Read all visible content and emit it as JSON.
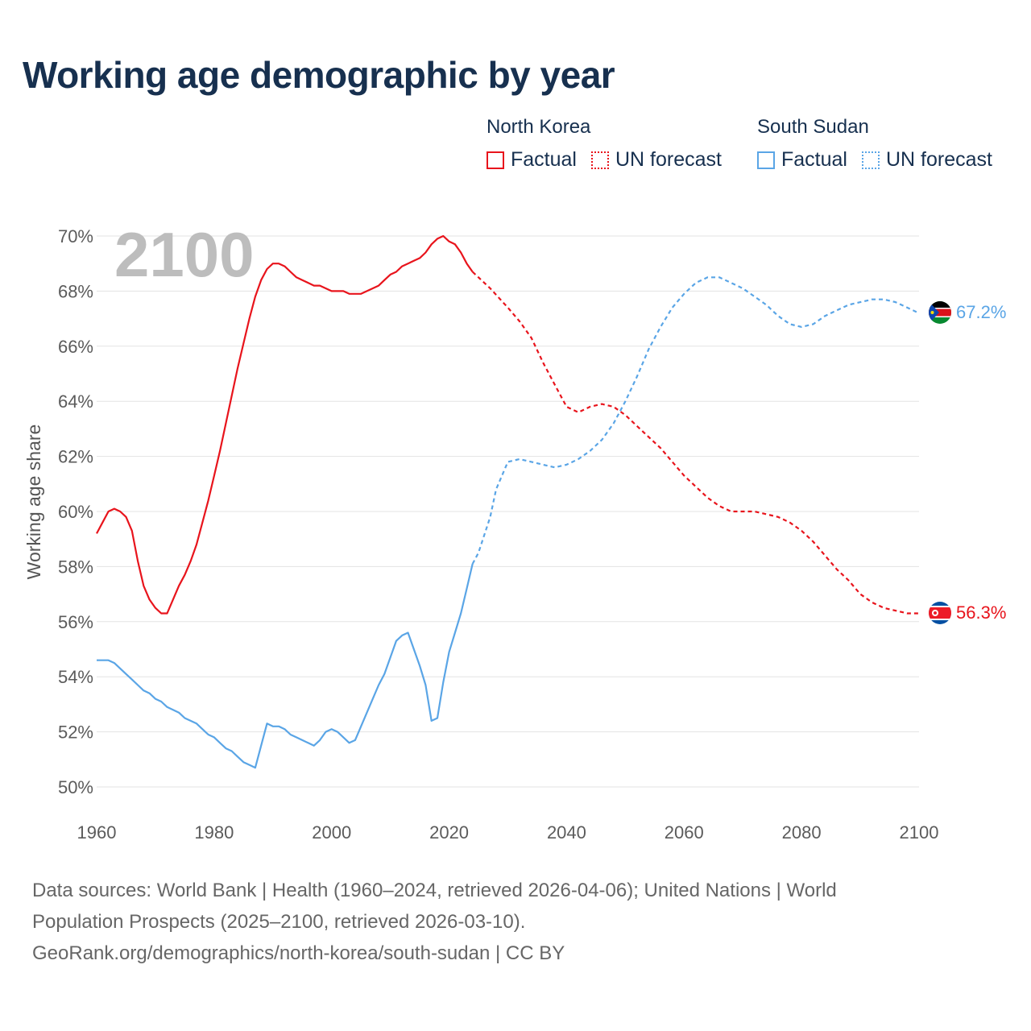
{
  "title": "Working age demographic by year",
  "legend": {
    "groups": [
      {
        "country": "North Korea",
        "factual": "Factual",
        "forecast": "UN forecast",
        "color": "#e8141c"
      },
      {
        "country": "South Sudan",
        "factual": "Factual",
        "forecast": "UN forecast",
        "color": "#5aa5e6"
      }
    ]
  },
  "sources": {
    "line1": "Data sources: World Bank | Health (1960–2024, retrieved 2026-04-06); United Nations | World",
    "line2": "Population Prospects (2025–2100, retrieved 2026-03-10).",
    "line3": "GeoRank.org/demographics/north-korea/south-sudan | CC BY"
  },
  "chart_data": {
    "type": "line",
    "title": "Working age demographic by year",
    "xlabel": "",
    "ylabel": "Working age share",
    "xlim": [
      1960,
      2100
    ],
    "ylim": [
      49,
      70.5
    ],
    "x_ticks": [
      1960,
      1980,
      2000,
      2020,
      2040,
      2060,
      2080,
      2100
    ],
    "y_ticks": [
      50,
      52,
      54,
      56,
      58,
      60,
      62,
      64,
      66,
      68,
      70
    ],
    "y_tick_suffix": "%",
    "grid": true,
    "year_overlay": "2100",
    "forecast_start": 2024,
    "series": [
      {
        "name": "North Korea",
        "color": "#e8141c",
        "end_label": "56.3%",
        "points": [
          [
            1960,
            59.2
          ],
          [
            1961,
            59.6
          ],
          [
            1962,
            60.0
          ],
          [
            1963,
            60.1
          ],
          [
            1964,
            60.0
          ],
          [
            1965,
            59.8
          ],
          [
            1966,
            59.3
          ],
          [
            1967,
            58.2
          ],
          [
            1968,
            57.3
          ],
          [
            1969,
            56.8
          ],
          [
            1970,
            56.5
          ],
          [
            1971,
            56.3
          ],
          [
            1972,
            56.3
          ],
          [
            1973,
            56.8
          ],
          [
            1974,
            57.3
          ],
          [
            1975,
            57.7
          ],
          [
            1976,
            58.2
          ],
          [
            1977,
            58.8
          ],
          [
            1978,
            59.6
          ],
          [
            1979,
            60.4
          ],
          [
            1980,
            61.3
          ],
          [
            1981,
            62.2
          ],
          [
            1982,
            63.2
          ],
          [
            1983,
            64.2
          ],
          [
            1984,
            65.2
          ],
          [
            1985,
            66.1
          ],
          [
            1986,
            67.0
          ],
          [
            1987,
            67.8
          ],
          [
            1988,
            68.4
          ],
          [
            1989,
            68.8
          ],
          [
            1990,
            69.0
          ],
          [
            1991,
            69.0
          ],
          [
            1992,
            68.9
          ],
          [
            1993,
            68.7
          ],
          [
            1994,
            68.5
          ],
          [
            1995,
            68.4
          ],
          [
            1996,
            68.3
          ],
          [
            1997,
            68.2
          ],
          [
            1998,
            68.2
          ],
          [
            1999,
            68.1
          ],
          [
            2000,
            68.0
          ],
          [
            2001,
            68.0
          ],
          [
            2002,
            68.0
          ],
          [
            2003,
            67.9
          ],
          [
            2004,
            67.9
          ],
          [
            2005,
            67.9
          ],
          [
            2006,
            68.0
          ],
          [
            2007,
            68.1
          ],
          [
            2008,
            68.2
          ],
          [
            2009,
            68.4
          ],
          [
            2010,
            68.6
          ],
          [
            2011,
            68.7
          ],
          [
            2012,
            68.9
          ],
          [
            2013,
            69.0
          ],
          [
            2014,
            69.1
          ],
          [
            2015,
            69.2
          ],
          [
            2016,
            69.4
          ],
          [
            2017,
            69.7
          ],
          [
            2018,
            69.9
          ],
          [
            2019,
            70.0
          ],
          [
            2020,
            69.8
          ],
          [
            2021,
            69.7
          ],
          [
            2022,
            69.4
          ],
          [
            2023,
            69.0
          ],
          [
            2024,
            68.7
          ],
          [
            2025,
            68.5
          ],
          [
            2027,
            68.1
          ],
          [
            2030,
            67.4
          ],
          [
            2032,
            66.9
          ],
          [
            2034,
            66.3
          ],
          [
            2036,
            65.4
          ],
          [
            2038,
            64.6
          ],
          [
            2040,
            63.8
          ],
          [
            2042,
            63.6
          ],
          [
            2044,
            63.8
          ],
          [
            2046,
            63.9
          ],
          [
            2048,
            63.8
          ],
          [
            2050,
            63.5
          ],
          [
            2052,
            63.1
          ],
          [
            2054,
            62.7
          ],
          [
            2056,
            62.3
          ],
          [
            2058,
            61.8
          ],
          [
            2060,
            61.3
          ],
          [
            2062,
            60.9
          ],
          [
            2064,
            60.5
          ],
          [
            2066,
            60.2
          ],
          [
            2068,
            60.0
          ],
          [
            2070,
            60.0
          ],
          [
            2072,
            60.0
          ],
          [
            2074,
            59.9
          ],
          [
            2076,
            59.8
          ],
          [
            2078,
            59.6
          ],
          [
            2080,
            59.3
          ],
          [
            2082,
            58.9
          ],
          [
            2084,
            58.4
          ],
          [
            2086,
            57.9
          ],
          [
            2088,
            57.5
          ],
          [
            2090,
            57.0
          ],
          [
            2092,
            56.7
          ],
          [
            2094,
            56.5
          ],
          [
            2096,
            56.4
          ],
          [
            2098,
            56.3
          ],
          [
            2100,
            56.3
          ]
        ]
      },
      {
        "name": "South Sudan",
        "color": "#5aa5e6",
        "end_label": "67.2%",
        "points": [
          [
            1960,
            54.6
          ],
          [
            1961,
            54.6
          ],
          [
            1962,
            54.6
          ],
          [
            1963,
            54.5
          ],
          [
            1964,
            54.3
          ],
          [
            1965,
            54.1
          ],
          [
            1966,
            53.9
          ],
          [
            1967,
            53.7
          ],
          [
            1968,
            53.5
          ],
          [
            1969,
            53.4
          ],
          [
            1970,
            53.2
          ],
          [
            1971,
            53.1
          ],
          [
            1972,
            52.9
          ],
          [
            1973,
            52.8
          ],
          [
            1974,
            52.7
          ],
          [
            1975,
            52.5
          ],
          [
            1976,
            52.4
          ],
          [
            1977,
            52.3
          ],
          [
            1978,
            52.1
          ],
          [
            1979,
            51.9
          ],
          [
            1980,
            51.8
          ],
          [
            1981,
            51.6
          ],
          [
            1982,
            51.4
          ],
          [
            1983,
            51.3
          ],
          [
            1984,
            51.1
          ],
          [
            1985,
            50.9
          ],
          [
            1986,
            50.8
          ],
          [
            1987,
            50.7
          ],
          [
            1988,
            51.5
          ],
          [
            1989,
            52.3
          ],
          [
            1990,
            52.2
          ],
          [
            1991,
            52.2
          ],
          [
            1992,
            52.1
          ],
          [
            1993,
            51.9
          ],
          [
            1994,
            51.8
          ],
          [
            1995,
            51.7
          ],
          [
            1996,
            51.6
          ],
          [
            1997,
            51.5
          ],
          [
            1998,
            51.7
          ],
          [
            1999,
            52.0
          ],
          [
            2000,
            52.1
          ],
          [
            2001,
            52.0
          ],
          [
            2002,
            51.8
          ],
          [
            2003,
            51.6
          ],
          [
            2004,
            51.7
          ],
          [
            2005,
            52.2
          ],
          [
            2006,
            52.7
          ],
          [
            2007,
            53.2
          ],
          [
            2008,
            53.7
          ],
          [
            2009,
            54.1
          ],
          [
            2010,
            54.7
          ],
          [
            2011,
            55.3
          ],
          [
            2012,
            55.5
          ],
          [
            2013,
            55.6
          ],
          [
            2014,
            55.0
          ],
          [
            2015,
            54.4
          ],
          [
            2016,
            53.7
          ],
          [
            2017,
            52.4
          ],
          [
            2018,
            52.5
          ],
          [
            2019,
            53.8
          ],
          [
            2020,
            54.9
          ],
          [
            2021,
            55.6
          ],
          [
            2022,
            56.3
          ],
          [
            2023,
            57.2
          ],
          [
            2024,
            58.1
          ],
          [
            2025,
            58.5
          ],
          [
            2027,
            59.8
          ],
          [
            2028,
            60.8
          ],
          [
            2030,
            61.8
          ],
          [
            2032,
            61.9
          ],
          [
            2034,
            61.8
          ],
          [
            2036,
            61.7
          ],
          [
            2038,
            61.6
          ],
          [
            2040,
            61.7
          ],
          [
            2042,
            61.9
          ],
          [
            2044,
            62.2
          ],
          [
            2046,
            62.6
          ],
          [
            2048,
            63.2
          ],
          [
            2050,
            64.0
          ],
          [
            2052,
            64.9
          ],
          [
            2054,
            65.9
          ],
          [
            2056,
            66.7
          ],
          [
            2058,
            67.4
          ],
          [
            2060,
            67.9
          ],
          [
            2062,
            68.3
          ],
          [
            2064,
            68.5
          ],
          [
            2066,
            68.5
          ],
          [
            2068,
            68.3
          ],
          [
            2070,
            68.1
          ],
          [
            2072,
            67.8
          ],
          [
            2074,
            67.5
          ],
          [
            2076,
            67.1
          ],
          [
            2078,
            66.8
          ],
          [
            2080,
            66.7
          ],
          [
            2082,
            66.8
          ],
          [
            2084,
            67.1
          ],
          [
            2086,
            67.3
          ],
          [
            2088,
            67.5
          ],
          [
            2090,
            67.6
          ],
          [
            2092,
            67.7
          ],
          [
            2094,
            67.7
          ],
          [
            2096,
            67.6
          ],
          [
            2098,
            67.4
          ],
          [
            2100,
            67.2
          ]
        ]
      }
    ]
  }
}
